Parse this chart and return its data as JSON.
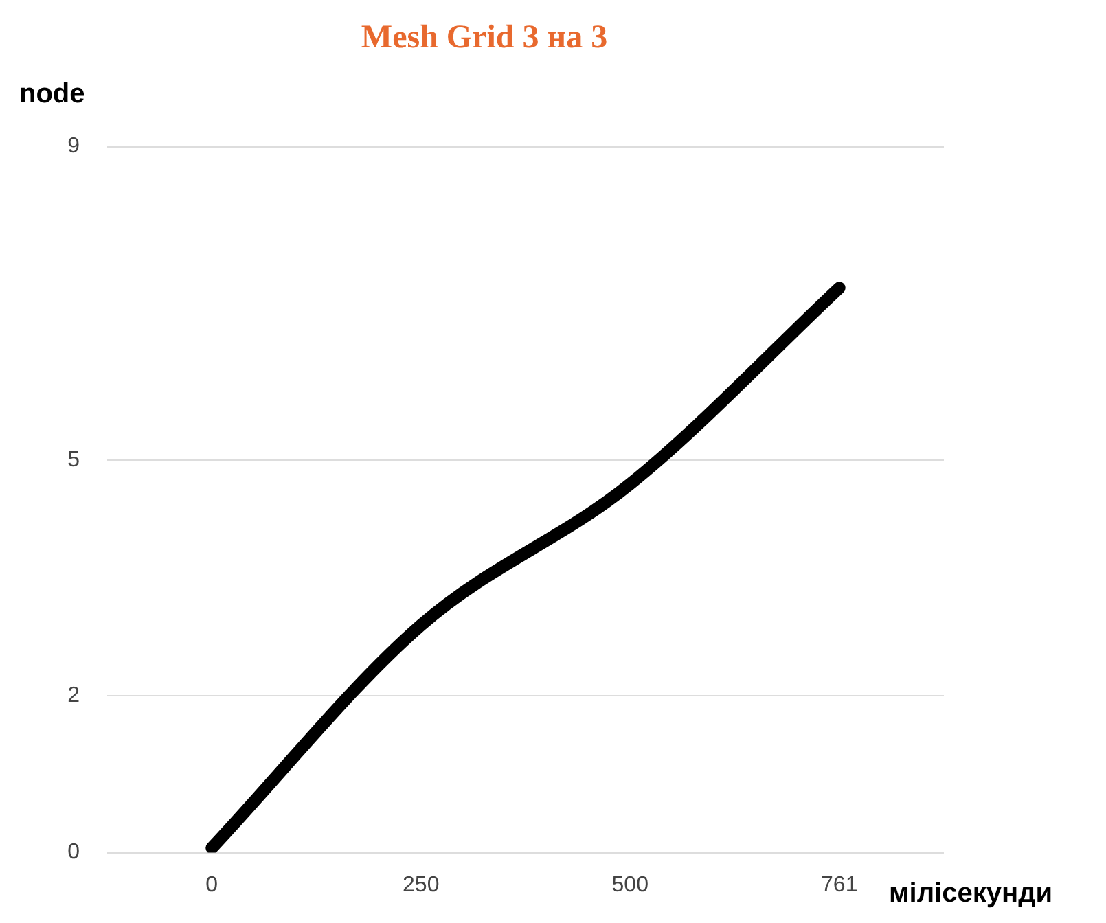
{
  "chart_data": {
    "type": "line",
    "title": "Mesh Grid 3 на 3",
    "xlabel": "мілісекунди",
    "ylabel": "node",
    "categories": [
      "0",
      "250",
      "500",
      "761"
    ],
    "series": [
      {
        "color": "#000000",
        "values": [
          0.06,
          2.9,
          4.7,
          7.2
        ]
      }
    ],
    "ylim": [
      0,
      9
    ],
    "yticks": [
      0,
      2,
      5,
      9
    ],
    "grid": "y",
    "legend": false,
    "marker": "none",
    "line_style": "solid"
  }
}
